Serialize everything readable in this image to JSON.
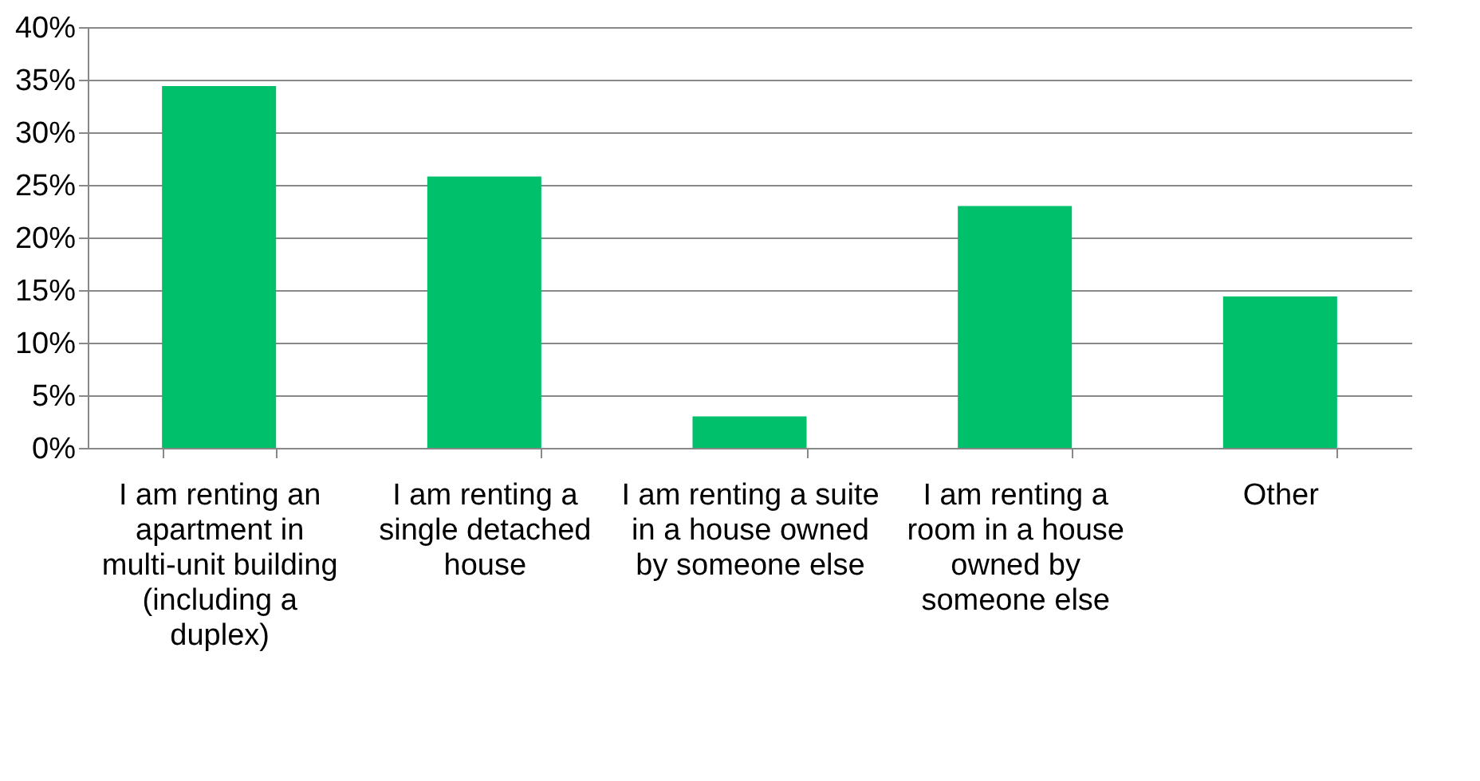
{
  "chart_data": {
    "type": "bar",
    "categories": [
      "I am renting an apartment in multi-unit building (including a duplex)",
      "I am renting a single detached house",
      "I am renting a suite in a house owned by someone else",
      "I am renting a room in a house owned by someone else",
      "Other"
    ],
    "values": [
      34.4,
      25.8,
      3,
      23,
      14.4
    ],
    "color": "#00c06b",
    "ylim": [
      0,
      40
    ],
    "yticks": [
      {
        "value": 0,
        "label": "0%"
      },
      {
        "value": 5,
        "label": "5%"
      },
      {
        "value": 10,
        "label": "10%"
      },
      {
        "value": 15,
        "label": "15%"
      },
      {
        "value": 20,
        "label": "20%"
      },
      {
        "value": 25,
        "label": "25%"
      },
      {
        "value": 30,
        "label": "30%"
      },
      {
        "value": 35,
        "label": "35%"
      },
      {
        "value": 40,
        "label": "40%"
      }
    ],
    "grid": "y"
  }
}
